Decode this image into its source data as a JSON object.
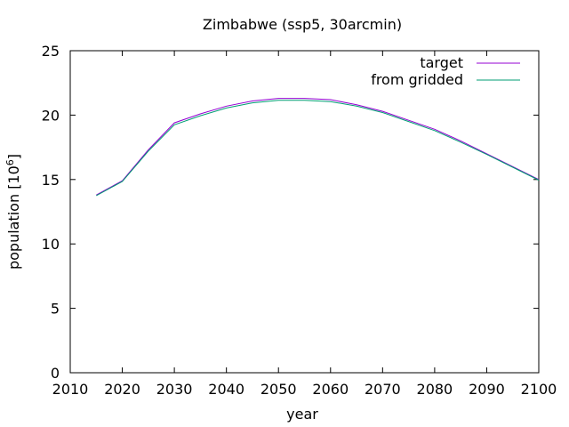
{
  "chart_data": {
    "type": "line",
    "title": "Zimbabwe (ssp5, 30arcmin)",
    "xlabel": "year",
    "ylabel": "population [10",
    "ylabel_sup": "6",
    "ylabel_close": "]",
    "xlim": [
      2010,
      2100
    ],
    "ylim": [
      0,
      25
    ],
    "xticks": [
      2010,
      2020,
      2030,
      2040,
      2050,
      2060,
      2070,
      2080,
      2090,
      2100
    ],
    "yticks": [
      0,
      5,
      10,
      15,
      20,
      25
    ],
    "grid": false,
    "legend_position": "top-right",
    "x": [
      2015,
      2020,
      2025,
      2030,
      2035,
      2040,
      2045,
      2050,
      2055,
      2060,
      2065,
      2070,
      2075,
      2080,
      2085,
      2090,
      2095,
      2100
    ],
    "series": [
      {
        "name": "target",
        "color": "#9400d3",
        "values": [
          13.8,
          14.9,
          17.3,
          19.4,
          20.1,
          20.7,
          21.1,
          21.3,
          21.3,
          21.2,
          20.8,
          20.3,
          19.6,
          18.9,
          18.0,
          17.0,
          16.0,
          15.0
        ]
      },
      {
        "name": "from gridded",
        "color": "#009e73",
        "values": [
          13.75,
          14.85,
          17.2,
          19.25,
          19.95,
          20.55,
          20.95,
          21.15,
          21.15,
          21.05,
          20.7,
          20.2,
          19.5,
          18.8,
          17.9,
          16.95,
          15.95,
          14.95
        ]
      }
    ]
  }
}
